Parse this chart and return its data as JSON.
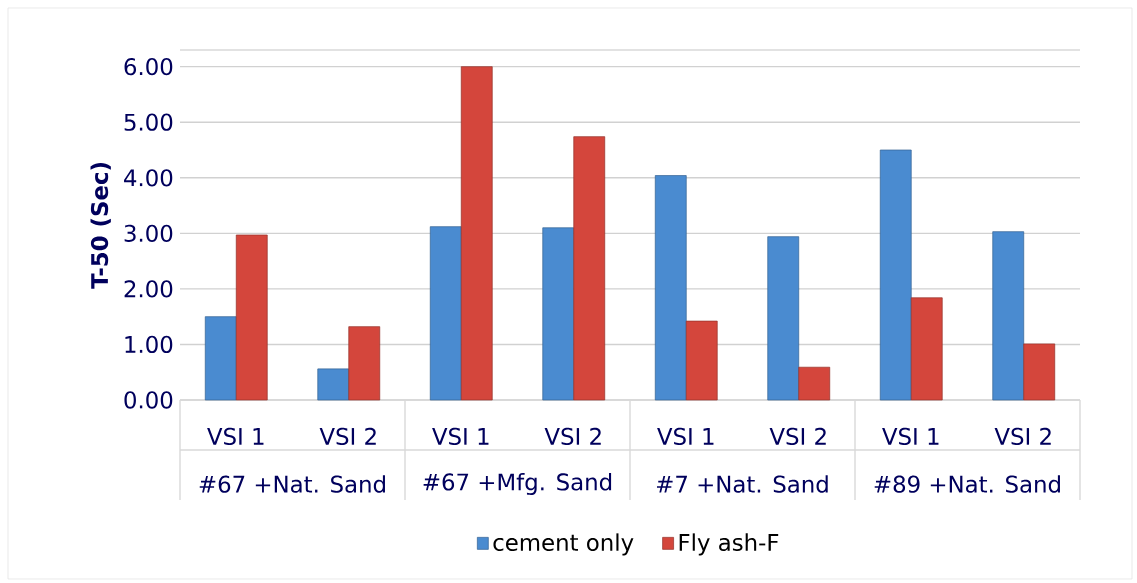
{
  "chart_data": {
    "type": "bar",
    "ylabel": "T-50 (Sec)",
    "categories": [
      "VSI 1",
      "VSI 2",
      "VSI 1",
      "VSI 2",
      "VSI 1",
      "VSI 2",
      "VSI 1",
      "VSI 2"
    ],
    "annotations": [
      "#67 +Nat. Sand",
      "#67 +Mfg. Sand",
      "#7 +Nat. Sand",
      "#89 +Nat. Sand"
    ],
    "series": [
      {
        "name": "cement only",
        "color": "#4a8bd0",
        "values": [
          1.5,
          0.56,
          3.12,
          3.1,
          4.04,
          2.94,
          4.5,
          3.03
        ]
      },
      {
        "name": "Fly ash-F",
        "color": "#d4463c",
        "values": [
          2.97,
          1.32,
          6.0,
          4.74,
          1.42,
          0.59,
          1.84,
          1.01
        ]
      }
    ],
    "ylim": [
      0,
      6.3
    ],
    "yticks": [
      {
        "value": 0,
        "label": "0.00"
      },
      {
        "value": 1,
        "label": "1.00"
      },
      {
        "value": 2,
        "label": "2.00"
      },
      {
        "value": 3,
        "label": "3.00"
      },
      {
        "value": 4,
        "label": "4.00"
      },
      {
        "value": 5,
        "label": "5.00"
      },
      {
        "value": 6,
        "label": "6.00"
      }
    ],
    "grid": "y",
    "legend": "bottom"
  }
}
